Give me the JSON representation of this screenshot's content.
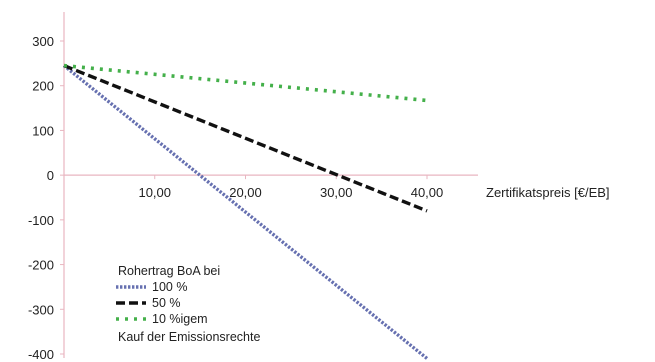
{
  "chart_data": {
    "type": "line",
    "title": "",
    "xlabel": "Zertifikatspreis [€/EB]",
    "ylabel": "",
    "xlim": [
      0,
      40
    ],
    "ylim": [
      -400,
      300
    ],
    "x_ticks": [
      10,
      20,
      30,
      40
    ],
    "x_tick_labels": [
      "10,00",
      "20,00",
      "30,00",
      "40,00"
    ],
    "y_ticks": [
      300,
      200,
      100,
      0,
      -100,
      -200,
      -300,
      -400
    ],
    "y_tick_labels": [
      "300",
      "200",
      "100",
      "0",
      "-100",
      "-200",
      "-300",
      "-400"
    ],
    "grid": false,
    "legend_position": "bottom-left",
    "legend_title": "Rohertrag BoA bei",
    "legend_footer": "Kauf der Emissionsrechte",
    "series": [
      {
        "name": "100 %",
        "color": "#6670b0",
        "style": "dotted",
        "x": [
          0,
          40
        ],
        "y": [
          245,
          -410
        ]
      },
      {
        "name": "50 %",
        "color": "#111111",
        "style": "dashed",
        "x": [
          0,
          40
        ],
        "y": [
          245,
          -80
        ]
      },
      {
        "name": "10 %igem",
        "color": "#44b04a",
        "style": "dotted",
        "x": [
          0,
          40
        ],
        "y": [
          245,
          167
        ]
      }
    ]
  }
}
